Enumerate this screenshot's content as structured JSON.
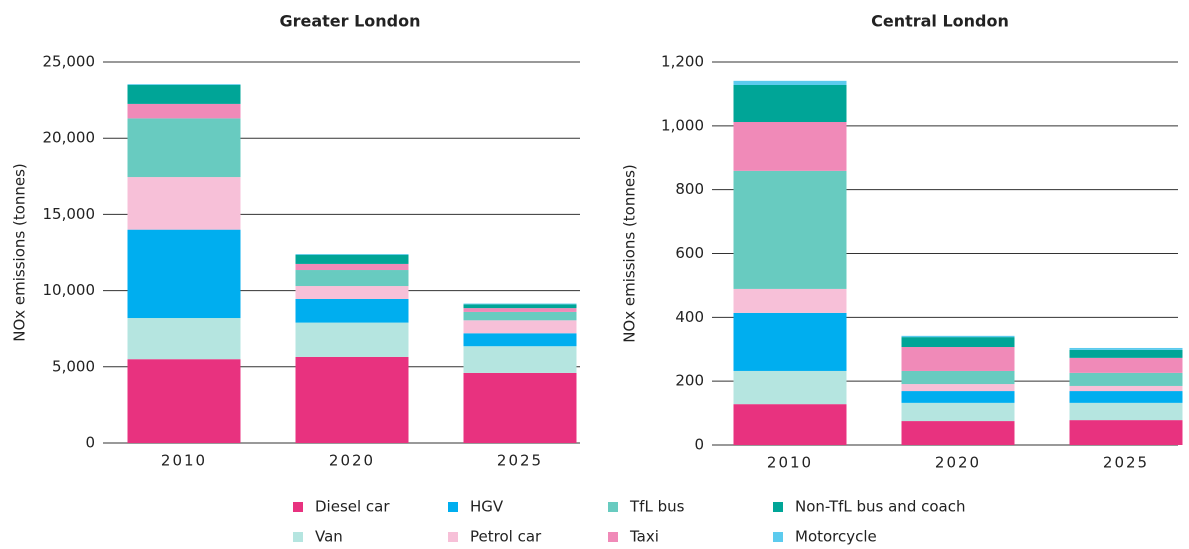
{
  "chart_data": [
    {
      "type": "stacked-bar",
      "title": "Greater London",
      "y_label": "NOx emissions (tonnes)",
      "categories": [
        "2010",
        "2020",
        "2025"
      ],
      "ylim": [
        0,
        25000
      ],
      "yticks": [
        0,
        {
          "value": 5000,
          "label": "5,000"
        },
        {
          "value": 10000,
          "label": "10,000"
        },
        {
          "value": 15000,
          "label": "15,000"
        },
        {
          "value": 20000,
          "label": "20,000"
        },
        {
          "value": 25000,
          "label": "25,000"
        }
      ],
      "grid": true,
      "series": [
        {
          "name": "Diesel car",
          "color": "#e8327f",
          "values": [
            5500,
            5650,
            4600
          ]
        },
        {
          "name": "Van",
          "color": "#b5e5e0",
          "values": [
            2700,
            2250,
            1750
          ]
        },
        {
          "name": "HGV",
          "color": "#00aeef",
          "values": [
            5800,
            1550,
            850
          ]
        },
        {
          "name": "Petrol car",
          "color": "#f7c0d8",
          "values": [
            3450,
            850,
            850
          ]
        },
        {
          "name": "TfL bus",
          "color": "#68cbc0",
          "values": [
            3850,
            1050,
            550
          ]
        },
        {
          "name": "Taxi",
          "color": "#f08ab8",
          "values": [
            950,
            400,
            250
          ]
        },
        {
          "name": "Non-TfL bus and coach",
          "color": "#00a597",
          "values": [
            1250,
            600,
            250
          ]
        },
        {
          "name": "Motorcycle",
          "color": "#5ccbee",
          "values": [
            50,
            50,
            50
          ]
        }
      ]
    },
    {
      "type": "stacked-bar",
      "title": "Central London",
      "y_label": "NOx emissions (tonnes)",
      "categories": [
        "2010",
        "2020",
        "2025"
      ],
      "ylim": [
        0,
        1200
      ],
      "yticks": [
        0,
        200,
        400,
        600,
        800,
        {
          "value": 1000,
          "label": "1,000"
        },
        {
          "value": 1200,
          "label": "1,200"
        }
      ],
      "grid": true,
      "series": [
        {
          "name": "Diesel car",
          "color": "#e8327f",
          "values": [
            128,
            75,
            78
          ]
        },
        {
          "name": "Van",
          "color": "#b5e5e0",
          "values": [
            104,
            57,
            54
          ]
        },
        {
          "name": "HGV",
          "color": "#00aeef",
          "values": [
            182,
            37,
            37
          ]
        },
        {
          "name": "Petrol car",
          "color": "#f7c0d8",
          "values": [
            75,
            22,
            16
          ]
        },
        {
          "name": "TfL bus",
          "color": "#68cbc0",
          "values": [
            370,
            41,
            41
          ]
        },
        {
          "name": "Taxi",
          "color": "#f08ab8",
          "values": [
            153,
            75,
            47
          ]
        },
        {
          "name": "Non-TfL bus and coach",
          "color": "#00a597",
          "values": [
            116,
            31,
            25
          ]
        },
        {
          "name": "Motorcycle",
          "color": "#5ccbee",
          "values": [
            13,
            4,
            6
          ]
        }
      ]
    }
  ]
}
